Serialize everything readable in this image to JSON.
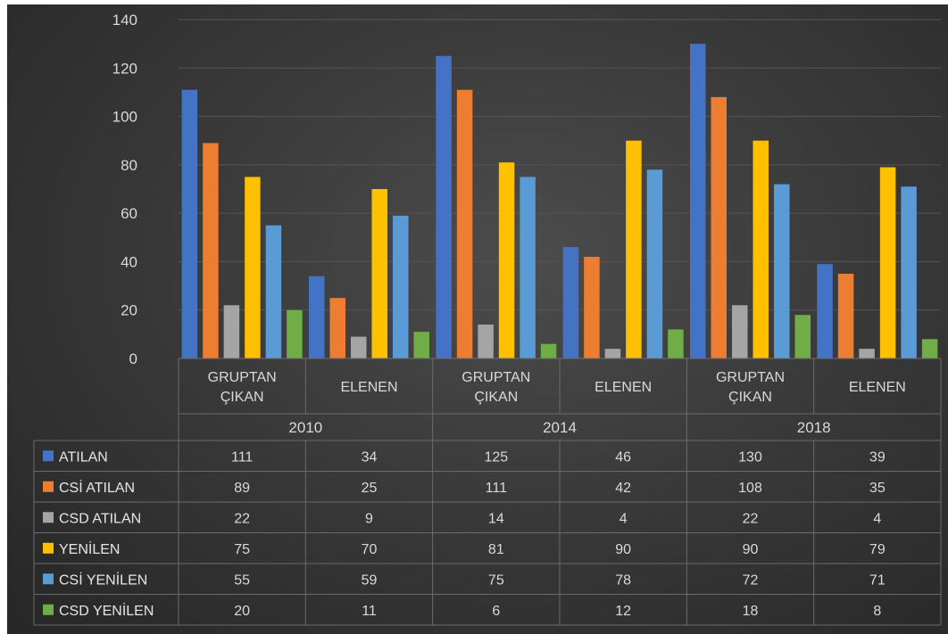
{
  "chart_data": {
    "type": "bar",
    "ylim": [
      0,
      140
    ],
    "yticks": [
      0,
      20,
      40,
      60,
      80,
      100,
      120,
      140
    ],
    "grid": true,
    "legend": "data-table",
    "groups": [
      {
        "year": "2010",
        "categories": [
          "GRUPTAN ÇIKAN",
          "ELENEN"
        ]
      },
      {
        "year": "2014",
        "categories": [
          "GRUPTAN ÇIKAN",
          "ELENEN"
        ]
      },
      {
        "year": "2018",
        "categories": [
          "GRUPTAN ÇIKAN",
          "ELENEN"
        ]
      }
    ],
    "categories": [
      "2010 GRUPTAN ÇIKAN",
      "2010 ELENEN",
      "2014 GRUPTAN ÇIKAN",
      "2014 ELENEN",
      "2018 GRUPTAN ÇIKAN",
      "2018 ELENEN"
    ],
    "series": [
      {
        "name": "ATILAN",
        "color": "#4472c4",
        "values": [
          111,
          34,
          125,
          46,
          130,
          39
        ]
      },
      {
        "name": "CSİ ATILAN",
        "color": "#ed7d31",
        "values": [
          89,
          25,
          111,
          42,
          108,
          35
        ]
      },
      {
        "name": "CSD ATILAN",
        "color": "#a5a5a5",
        "values": [
          22,
          9,
          14,
          4,
          22,
          4
        ]
      },
      {
        "name": "YENİLEN",
        "color": "#ffc000",
        "values": [
          75,
          70,
          81,
          90,
          90,
          79
        ]
      },
      {
        "name": "CSİ YENİLEN",
        "color": "#5b9bd5",
        "values": [
          55,
          59,
          75,
          78,
          72,
          71
        ]
      },
      {
        "name": "CSD YENİLEN",
        "color": "#70ad47",
        "values": [
          20,
          11,
          6,
          12,
          18,
          8
        ]
      }
    ]
  }
}
